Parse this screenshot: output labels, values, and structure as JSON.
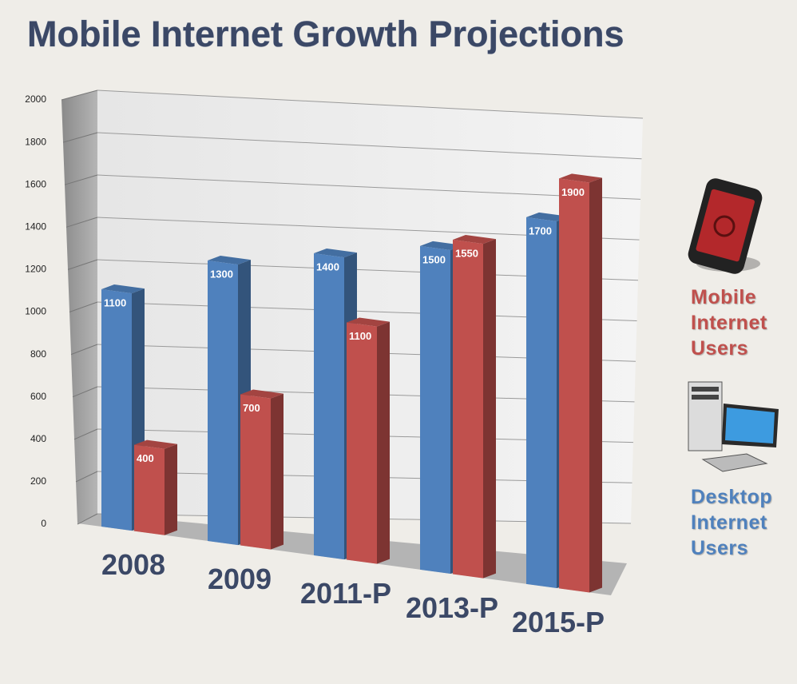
{
  "chart_data": {
    "type": "bar",
    "title": "Mobile Internet Growth Projections",
    "categories": [
      "2008",
      "2009",
      "2011-P",
      "2013-P",
      "2015-P"
    ],
    "series": [
      {
        "name": "Desktop Internet Users",
        "color": "#4f81bd",
        "values": [
          1100,
          1300,
          1400,
          1500,
          1700
        ]
      },
      {
        "name": "Mobile Internet Users",
        "color": "#c0504d",
        "values": [
          400,
          700,
          1100,
          1550,
          1900
        ]
      }
    ],
    "ylim": [
      0,
      2000
    ],
    "yticks": [
      0,
      200,
      400,
      600,
      800,
      1000,
      1200,
      1400,
      1600,
      1800,
      2000
    ],
    "grid": true
  }
}
